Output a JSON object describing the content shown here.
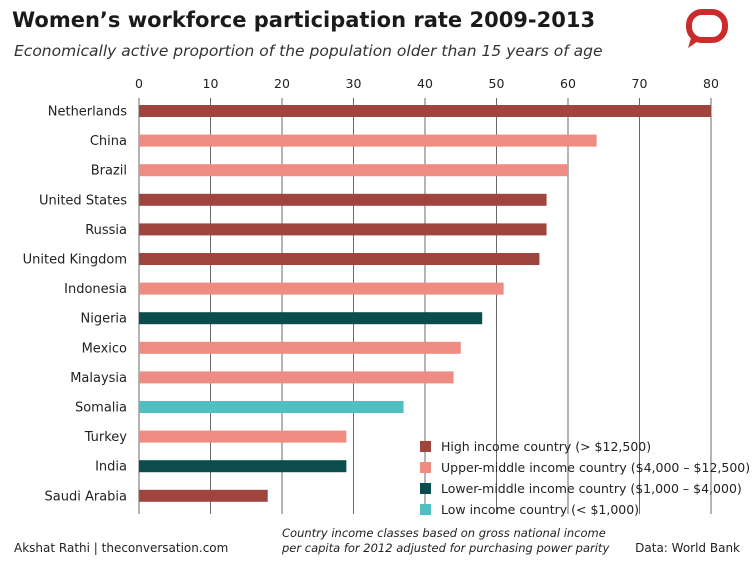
{
  "title": "Women’s workforce participation rate 2009-2013",
  "subtitle": "Economically active proportion of the population older than 15 years of age",
  "logo_icon": "speech-bubble-icon",
  "colors": {
    "high": "#a0443e",
    "upper_middle": "#ee8b82",
    "lower_middle": "#0b4c4c",
    "low": "#4fbfc1",
    "logo": "#cc2b2b"
  },
  "chart_data": {
    "type": "bar",
    "orientation": "horizontal",
    "title": "Women’s workforce participation rate 2009-2013",
    "subtitle": "Economically active proportion of the population older than 15 years of age",
    "xlim": [
      0,
      80
    ],
    "x_ticks": [
      "0",
      "10",
      "20",
      "30",
      "40",
      "50",
      "60",
      "70",
      "80"
    ],
    "grid": true,
    "legend_position": "bottom-right",
    "categories": [
      "Netherlands",
      "China",
      "Brazil",
      "United States",
      "Russia",
      "United Kingdom",
      "Indonesia",
      "Nigeria",
      "Mexico",
      "Malaysia",
      "Somalia",
      "Turkey",
      "India",
      "Saudi Arabia"
    ],
    "values": [
      80,
      64,
      60,
      57,
      57,
      56,
      51,
      48,
      45,
      44,
      37,
      29,
      29,
      18
    ],
    "groups": [
      "high",
      "upper_middle",
      "upper_middle",
      "high",
      "high",
      "high",
      "upper_middle",
      "lower_middle",
      "upper_middle",
      "upper_middle",
      "low",
      "upper_middle",
      "lower_middle",
      "high"
    ],
    "legend": [
      {
        "key": "high",
        "label": "High income country (> $12,500)"
      },
      {
        "key": "upper_middle",
        "label": "Upper-middle income country ($4,000 – $12,500)"
      },
      {
        "key": "lower_middle",
        "label": "Lower-middle income country ($1,000 – $4,000)"
      },
      {
        "key": "low",
        "label": "Low income country (< $1,000)"
      }
    ]
  },
  "footer": {
    "credit": "Akshat Rathi | theconversation.com",
    "note_line1": "Country income classes based on gross national income",
    "note_line2": "per capita for 2012 adjusted for purchasing power parity",
    "source": "Data: World Bank"
  }
}
